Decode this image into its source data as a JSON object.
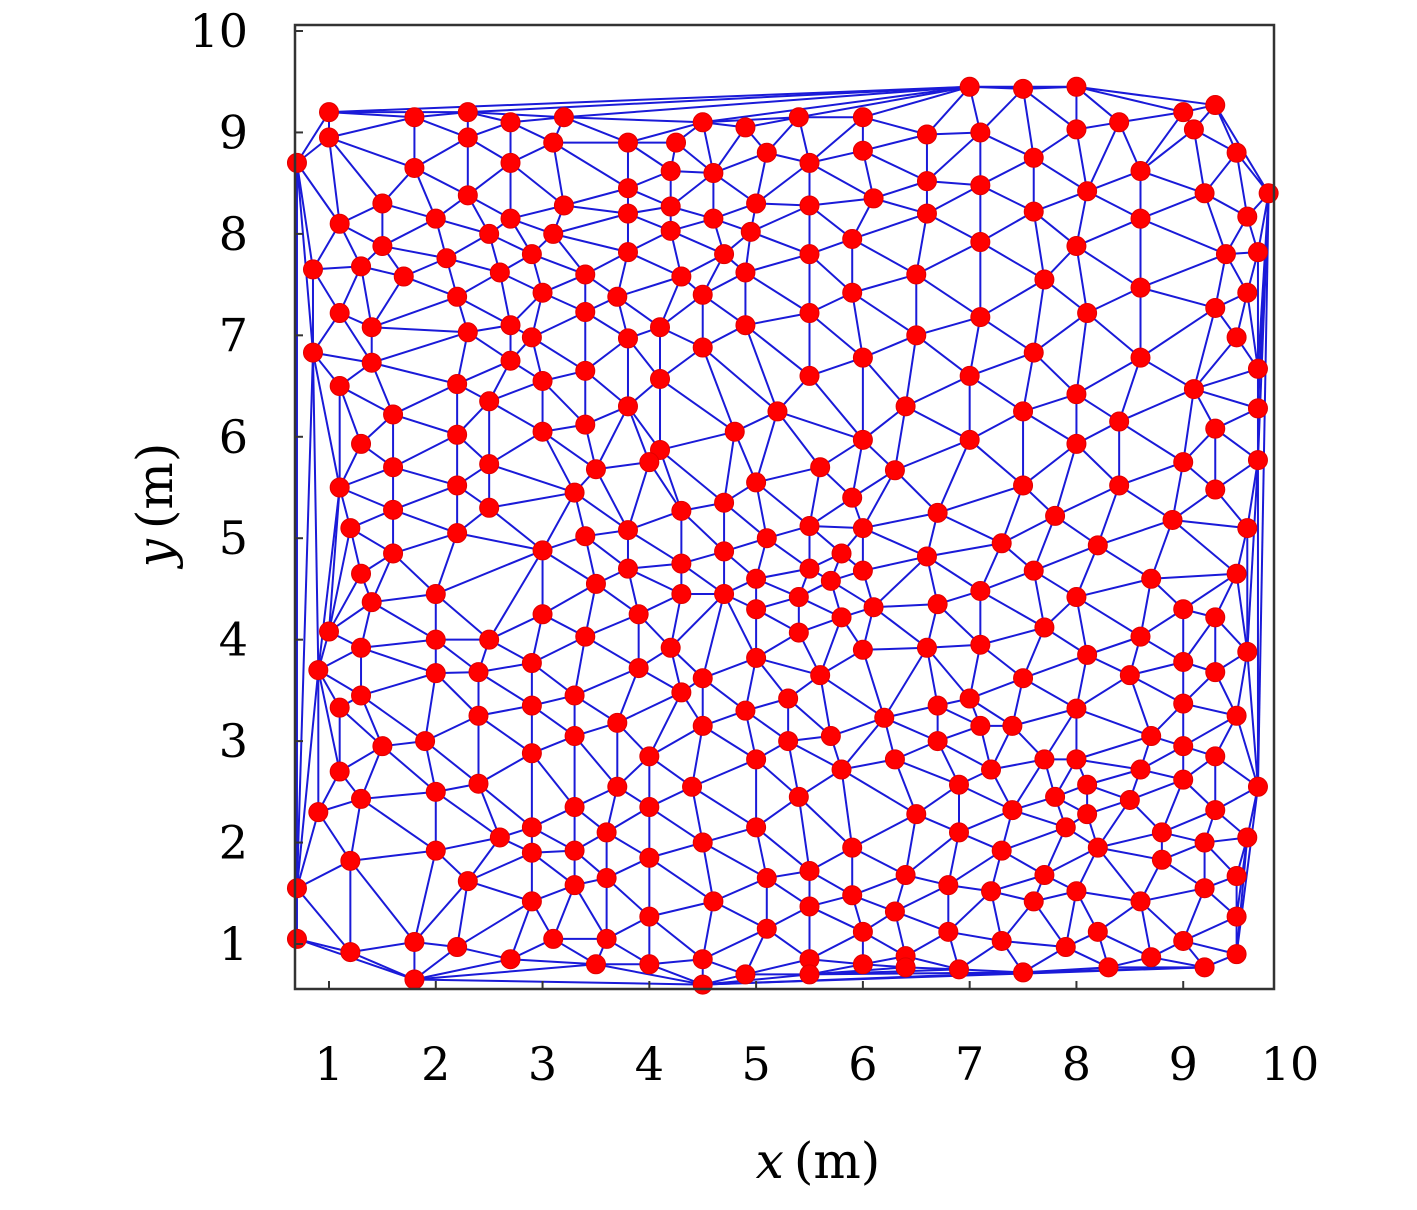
{
  "chart_data": {
    "type": "scatter",
    "title": "",
    "xlabel_italic": "x",
    "xlabel_unit": "(m)",
    "ylabel_italic": "y",
    "ylabel_unit": "(m)",
    "xlim": [
      0.7,
      9.9
    ],
    "ylim": [
      0.6,
      10.0
    ],
    "xticks": [
      1,
      2,
      3,
      4,
      5,
      6,
      7,
      8,
      9,
      10
    ],
    "yticks": [
      1,
      2,
      3,
      4,
      5,
      6,
      7,
      8,
      9,
      10
    ],
    "x_tick_labels": [
      "1",
      "2",
      "3",
      "4",
      "5",
      "6",
      "7",
      "8",
      "9",
      "10"
    ],
    "y_tick_labels": [
      "1",
      "2",
      "3",
      "4",
      "5",
      "6",
      "7",
      "8",
      "9",
      "10"
    ],
    "grid": false,
    "legend": "none",
    "edge_mode": "delaunay-triangulation",
    "node_color": "#ff0000",
    "edge_color": "#1a1ad8",
    "points": [
      [
        1.0,
        9.2
      ],
      [
        1.8,
        9.15
      ],
      [
        2.3,
        9.2
      ],
      [
        2.7,
        9.1
      ],
      [
        3.2,
        9.15
      ],
      [
        4.5,
        9.1
      ],
      [
        4.9,
        9.05
      ],
      [
        5.4,
        9.15
      ],
      [
        6.0,
        9.15
      ],
      [
        7.0,
        9.45
      ],
      [
        7.5,
        9.43
      ],
      [
        8.0,
        9.45
      ],
      [
        8.4,
        9.1
      ],
      [
        9.0,
        9.2
      ],
      [
        9.3,
        9.27
      ],
      [
        0.7,
        8.7
      ],
      [
        1.0,
        8.95
      ],
      [
        2.3,
        8.95
      ],
      [
        3.1,
        8.9
      ],
      [
        3.8,
        8.9
      ],
      [
        4.25,
        8.9
      ],
      [
        6.6,
        8.98
      ],
      [
        7.1,
        9.0
      ],
      [
        8.0,
        9.03
      ],
      [
        9.1,
        9.03
      ],
      [
        5.1,
        8.8
      ],
      [
        5.5,
        8.7
      ],
      [
        6.0,
        8.82
      ],
      [
        7.6,
        8.75
      ],
      [
        8.6,
        8.62
      ],
      [
        9.5,
        8.8
      ],
      [
        1.8,
        8.65
      ],
      [
        2.7,
        8.7
      ],
      [
        4.2,
        8.62
      ],
      [
        4.6,
        8.6
      ],
      [
        6.6,
        8.52
      ],
      [
        7.1,
        8.48
      ],
      [
        9.8,
        8.4
      ],
      [
        1.1,
        8.1
      ],
      [
        1.5,
        8.3
      ],
      [
        2.3,
        8.38
      ],
      [
        3.2,
        8.28
      ],
      [
        3.8,
        8.45
      ],
      [
        4.2,
        8.27
      ],
      [
        5.0,
        8.3
      ],
      [
        5.5,
        8.28
      ],
      [
        6.1,
        8.35
      ],
      [
        7.6,
        8.22
      ],
      [
        8.1,
        8.42
      ],
      [
        9.2,
        8.4
      ],
      [
        2.0,
        8.15
      ],
      [
        2.7,
        8.15
      ],
      [
        3.8,
        8.2
      ],
      [
        4.6,
        8.15
      ],
      [
        6.6,
        8.2
      ],
      [
        7.1,
        7.92
      ],
      [
        8.6,
        8.15
      ],
      [
        9.6,
        8.17
      ],
      [
        1.5,
        7.88
      ],
      [
        2.5,
        8.0
      ],
      [
        3.1,
        8.0
      ],
      [
        4.2,
        8.03
      ],
      [
        4.95,
        8.02
      ],
      [
        5.9,
        7.95
      ],
      [
        8.0,
        7.88
      ],
      [
        9.4,
        7.8
      ],
      [
        9.7,
        7.82
      ],
      [
        0.85,
        7.65
      ],
      [
        1.3,
        7.68
      ],
      [
        1.7,
        7.58
      ],
      [
        2.1,
        7.76
      ],
      [
        2.6,
        7.62
      ],
      [
        2.9,
        7.8
      ],
      [
        3.4,
        7.6
      ],
      [
        3.8,
        7.82
      ],
      [
        4.3,
        7.58
      ],
      [
        4.7,
        7.8
      ],
      [
        4.9,
        7.62
      ],
      [
        5.5,
        7.8
      ],
      [
        6.5,
        7.6
      ],
      [
        7.7,
        7.55
      ],
      [
        8.6,
        7.47
      ],
      [
        9.6,
        7.42
      ],
      [
        2.2,
        7.38
      ],
      [
        3.0,
        7.42
      ],
      [
        3.7,
        7.38
      ],
      [
        4.5,
        7.4
      ],
      [
        5.9,
        7.42
      ],
      [
        9.3,
        7.27
      ],
      [
        1.1,
        7.22
      ],
      [
        1.4,
        7.08
      ],
      [
        2.3,
        7.03
      ],
      [
        2.7,
        7.1
      ],
      [
        3.4,
        7.23
      ],
      [
        4.1,
        7.08
      ],
      [
        4.9,
        7.1
      ],
      [
        5.5,
        7.22
      ],
      [
        7.1,
        7.18
      ],
      [
        8.1,
        7.22
      ],
      [
        2.9,
        6.98
      ],
      [
        3.8,
        6.97
      ],
      [
        4.5,
        6.88
      ],
      [
        6.5,
        7.0
      ],
      [
        9.5,
        6.98
      ],
      [
        0.85,
        6.83
      ],
      [
        1.4,
        6.73
      ],
      [
        2.7,
        6.75
      ],
      [
        6.0,
        6.78
      ],
      [
        7.6,
        6.83
      ],
      [
        8.6,
        6.78
      ],
      [
        9.7,
        6.67
      ],
      [
        1.1,
        6.5
      ],
      [
        2.2,
        6.52
      ],
      [
        3.0,
        6.55
      ],
      [
        3.4,
        6.65
      ],
      [
        4.1,
        6.57
      ],
      [
        5.5,
        6.6
      ],
      [
        7.0,
        6.6
      ],
      [
        8.0,
        6.42
      ],
      [
        9.1,
        6.47
      ],
      [
        1.6,
        6.22
      ],
      [
        2.5,
        6.35
      ],
      [
        3.8,
        6.3
      ],
      [
        5.2,
        6.25
      ],
      [
        6.4,
        6.3
      ],
      [
        7.5,
        6.25
      ],
      [
        8.4,
        6.15
      ],
      [
        9.7,
        6.28
      ],
      [
        1.3,
        5.93
      ],
      [
        2.2,
        6.02
      ],
      [
        3.0,
        6.05
      ],
      [
        3.4,
        6.12
      ],
      [
        4.1,
        5.87
      ],
      [
        4.8,
        6.05
      ],
      [
        6.0,
        5.97
      ],
      [
        7.0,
        5.97
      ],
      [
        8.0,
        5.93
      ],
      [
        9.3,
        6.08
      ],
      [
        1.6,
        5.7
      ],
      [
        2.5,
        5.73
      ],
      [
        3.5,
        5.68
      ],
      [
        4.0,
        5.75
      ],
      [
        5.6,
        5.7
      ],
      [
        6.3,
        5.67
      ],
      [
        9.0,
        5.75
      ],
      [
        9.7,
        5.77
      ],
      [
        1.1,
        5.5
      ],
      [
        2.2,
        5.52
      ],
      [
        3.3,
        5.45
      ],
      [
        5.0,
        5.55
      ],
      [
        7.5,
        5.52
      ],
      [
        8.4,
        5.52
      ],
      [
        9.3,
        5.48
      ],
      [
        1.6,
        5.28
      ],
      [
        2.5,
        5.3
      ],
      [
        4.3,
        5.27
      ],
      [
        4.7,
        5.35
      ],
      [
        5.5,
        5.12
      ],
      [
        5.9,
        5.4
      ],
      [
        6.7,
        5.25
      ],
      [
        7.8,
        5.22
      ],
      [
        8.9,
        5.18
      ],
      [
        1.2,
        5.1
      ],
      [
        2.2,
        5.05
      ],
      [
        3.4,
        5.02
      ],
      [
        3.8,
        5.08
      ],
      [
        4.7,
        4.87
      ],
      [
        5.1,
        5.0
      ],
      [
        6.0,
        5.1
      ],
      [
        7.3,
        4.95
      ],
      [
        9.6,
        5.1
      ],
      [
        1.3,
        4.65
      ],
      [
        1.6,
        4.85
      ],
      [
        3.0,
        4.88
      ],
      [
        3.5,
        4.55
      ],
      [
        3.8,
        4.7
      ],
      [
        4.3,
        4.75
      ],
      [
        5.0,
        4.6
      ],
      [
        5.5,
        4.7
      ],
      [
        5.8,
        4.85
      ],
      [
        5.7,
        4.58
      ],
      [
        6.0,
        4.68
      ],
      [
        6.6,
        4.82
      ],
      [
        7.6,
        4.68
      ],
      [
        8.2,
        4.93
      ],
      [
        8.7,
        4.6
      ],
      [
        9.5,
        4.65
      ],
      [
        1.4,
        4.37
      ],
      [
        2.0,
        4.45
      ],
      [
        3.0,
        4.25
      ],
      [
        3.9,
        4.25
      ],
      [
        4.3,
        4.45
      ],
      [
        4.7,
        4.45
      ],
      [
        5.0,
        4.3
      ],
      [
        5.4,
        4.42
      ],
      [
        5.8,
        4.22
      ],
      [
        6.1,
        4.32
      ],
      [
        6.7,
        4.35
      ],
      [
        7.1,
        4.48
      ],
      [
        8.0,
        4.42
      ],
      [
        9.0,
        4.3
      ],
      [
        9.3,
        4.22
      ],
      [
        1.0,
        4.08
      ],
      [
        1.3,
        3.92
      ],
      [
        2.0,
        4.0
      ],
      [
        2.5,
        4.0
      ],
      [
        3.4,
        4.03
      ],
      [
        4.2,
        3.92
      ],
      [
        5.4,
        4.07
      ],
      [
        6.0,
        3.9
      ],
      [
        6.6,
        3.92
      ],
      [
        7.1,
        3.95
      ],
      [
        7.7,
        4.12
      ],
      [
        8.6,
        4.03
      ],
      [
        9.6,
        3.88
      ],
      [
        0.9,
        3.7
      ],
      [
        2.0,
        3.67
      ],
      [
        2.4,
        3.68
      ],
      [
        2.9,
        3.77
      ],
      [
        3.9,
        3.72
      ],
      [
        4.5,
        3.62
      ],
      [
        5.0,
        3.82
      ],
      [
        5.6,
        3.65
      ],
      [
        7.5,
        3.62
      ],
      [
        8.1,
        3.85
      ],
      [
        8.5,
        3.65
      ],
      [
        9.0,
        3.78
      ],
      [
        9.3,
        3.68
      ],
      [
        1.1,
        3.33
      ],
      [
        1.3,
        3.45
      ],
      [
        3.3,
        3.45
      ],
      [
        4.3,
        3.48
      ],
      [
        4.9,
        3.3
      ],
      [
        5.3,
        3.42
      ],
      [
        6.7,
        3.35
      ],
      [
        7.0,
        3.42
      ],
      [
        8.0,
        3.32
      ],
      [
        9.0,
        3.37
      ],
      [
        2.4,
        3.25
      ],
      [
        2.9,
        3.35
      ],
      [
        3.7,
        3.18
      ],
      [
        4.5,
        3.15
      ],
      [
        6.2,
        3.23
      ],
      [
        7.1,
        3.15
      ],
      [
        7.4,
        3.15
      ],
      [
        9.5,
        3.25
      ],
      [
        1.5,
        2.95
      ],
      [
        1.9,
        3.0
      ],
      [
        3.3,
        3.05
      ],
      [
        5.3,
        3.0
      ],
      [
        5.7,
        3.05
      ],
      [
        6.7,
        3.0
      ],
      [
        8.7,
        3.05
      ],
      [
        9.0,
        2.95
      ],
      [
        2.9,
        2.88
      ],
      [
        4.0,
        2.85
      ],
      [
        5.0,
        2.82
      ],
      [
        6.3,
        2.82
      ],
      [
        7.7,
        2.82
      ],
      [
        8.0,
        2.82
      ],
      [
        9.3,
        2.85
      ],
      [
        1.1,
        2.7
      ],
      [
        5.8,
        2.72
      ],
      [
        6.9,
        2.57
      ],
      [
        7.2,
        2.72
      ],
      [
        8.1,
        2.57
      ],
      [
        8.6,
        2.72
      ],
      [
        9.0,
        2.62
      ],
      [
        2.0,
        2.5
      ],
      [
        2.4,
        2.58
      ],
      [
        3.7,
        2.55
      ],
      [
        4.4,
        2.55
      ],
      [
        5.4,
        2.45
      ],
      [
        7.8,
        2.45
      ],
      [
        8.5,
        2.42
      ],
      [
        9.7,
        2.55
      ],
      [
        0.9,
        2.3
      ],
      [
        1.3,
        2.43
      ],
      [
        3.3,
        2.35
      ],
      [
        4.0,
        2.35
      ],
      [
        6.5,
        2.28
      ],
      [
        7.4,
        2.32
      ],
      [
        8.1,
        2.28
      ],
      [
        9.3,
        2.32
      ],
      [
        2.6,
        2.05
      ],
      [
        2.9,
        2.15
      ],
      [
        3.6,
        2.1
      ],
      [
        4.5,
        2.0
      ],
      [
        5.0,
        2.15
      ],
      [
        6.9,
        2.1
      ],
      [
        7.9,
        2.15
      ],
      [
        8.8,
        2.1
      ],
      [
        9.6,
        2.05
      ],
      [
        1.2,
        1.82
      ],
      [
        2.0,
        1.92
      ],
      [
        2.9,
        1.9
      ],
      [
        3.3,
        1.92
      ],
      [
        4.0,
        1.85
      ],
      [
        5.9,
        1.95
      ],
      [
        7.3,
        1.92
      ],
      [
        8.2,
        1.95
      ],
      [
        8.8,
        1.83
      ],
      [
        9.2,
        2.0
      ],
      [
        0.7,
        1.55
      ],
      [
        2.3,
        1.62
      ],
      [
        3.3,
        1.58
      ],
      [
        3.6,
        1.65
      ],
      [
        5.1,
        1.65
      ],
      [
        5.5,
        1.72
      ],
      [
        6.4,
        1.68
      ],
      [
        6.8,
        1.58
      ],
      [
        7.7,
        1.68
      ],
      [
        9.2,
        1.55
      ],
      [
        9.5,
        1.67
      ],
      [
        2.9,
        1.42
      ],
      [
        4.6,
        1.42
      ],
      [
        5.5,
        1.37
      ],
      [
        5.9,
        1.48
      ],
      [
        7.2,
        1.52
      ],
      [
        7.6,
        1.42
      ],
      [
        8.0,
        1.52
      ],
      [
        8.6,
        1.42
      ],
      [
        4.0,
        1.27
      ],
      [
        5.1,
        1.15
      ],
      [
        6.3,
        1.32
      ],
      [
        9.5,
        1.27
      ],
      [
        0.7,
        1.05
      ],
      [
        1.8,
        1.02
      ],
      [
        2.2,
        0.97
      ],
      [
        3.1,
        1.05
      ],
      [
        3.6,
        1.05
      ],
      [
        6.0,
        1.12
      ],
      [
        6.8,
        1.12
      ],
      [
        7.3,
        1.03
      ],
      [
        7.9,
        0.97
      ],
      [
        8.2,
        1.12
      ],
      [
        9.0,
        1.03
      ],
      [
        1.2,
        0.92
      ],
      [
        2.7,
        0.85
      ],
      [
        3.5,
        0.8
      ],
      [
        4.0,
        0.8
      ],
      [
        4.5,
        0.85
      ],
      [
        5.5,
        0.85
      ],
      [
        6.0,
        0.8
      ],
      [
        6.4,
        0.88
      ],
      [
        8.7,
        0.87
      ],
      [
        9.5,
        0.9
      ],
      [
        1.8,
        0.65
      ],
      [
        4.5,
        0.6
      ],
      [
        4.9,
        0.7
      ],
      [
        5.5,
        0.7
      ],
      [
        6.4,
        0.77
      ],
      [
        6.9,
        0.75
      ],
      [
        7.5,
        0.72
      ],
      [
        8.3,
        0.77
      ],
      [
        9.2,
        0.77
      ]
    ]
  }
}
